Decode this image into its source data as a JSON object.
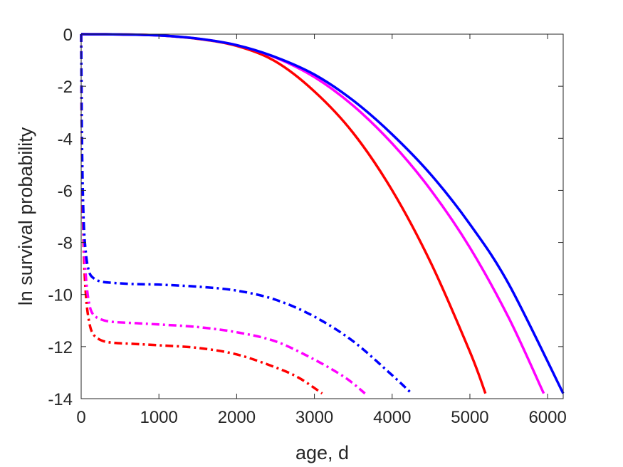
{
  "chart_data": {
    "type": "line",
    "title": "",
    "xlabel": "age, d",
    "ylabel": "ln survival probability",
    "xlim": [
      0,
      6200
    ],
    "ylim": [
      -14,
      0
    ],
    "xticks": [
      0,
      1000,
      2000,
      3000,
      4000,
      5000,
      6000
    ],
    "yticks": [
      0,
      -2,
      -4,
      -6,
      -8,
      -10,
      -12,
      -14
    ],
    "xtick_labels": [
      "0",
      "1000",
      "2000",
      "3000",
      "4000",
      "5000",
      "6000"
    ],
    "ytick_labels": [
      "0",
      "-2",
      "-4",
      "-6",
      "-8",
      "-10",
      "-12",
      "-14"
    ],
    "grid": false,
    "legend": "none",
    "series": [
      {
        "color": "#ff0000",
        "style": "solid",
        "x": [
          0,
          500,
          1000,
          1500,
          2000,
          2500,
          3000,
          3500,
          4000,
          4500,
          5000,
          5200
        ],
        "y": [
          0,
          -0.01,
          -0.05,
          -0.18,
          -0.45,
          -1.05,
          -2.2,
          -3.8,
          -6.0,
          -8.8,
          -12.2,
          -13.8
        ]
      },
      {
        "color": "#ff00ff",
        "style": "solid",
        "x": [
          0,
          500,
          1000,
          1500,
          2000,
          2500,
          3000,
          3500,
          4000,
          4500,
          5000,
          5500,
          5950
        ],
        "y": [
          0,
          -0.01,
          -0.05,
          -0.17,
          -0.42,
          -0.9,
          -1.65,
          -2.75,
          -4.2,
          -6.0,
          -8.2,
          -10.9,
          -13.8
        ]
      },
      {
        "color": "#0000ff",
        "style": "solid",
        "x": [
          0,
          500,
          1000,
          1500,
          2000,
          2500,
          3000,
          3500,
          4000,
          4500,
          5000,
          5500,
          6200
        ],
        "y": [
          0,
          -0.01,
          -0.05,
          -0.17,
          -0.42,
          -0.88,
          -1.55,
          -2.55,
          -3.85,
          -5.4,
          -7.3,
          -9.6,
          -13.8
        ]
      },
      {
        "color": "#ff0000",
        "style": "dashdot",
        "x": [
          0,
          10,
          30,
          60,
          100,
          150,
          250,
          400,
          700,
          1000,
          1500,
          2000,
          2500,
          2800,
          3100
        ],
        "y": [
          0,
          -4.5,
          -8.0,
          -10.0,
          -11.0,
          -11.5,
          -11.75,
          -11.85,
          -11.9,
          -11.95,
          -12.05,
          -12.3,
          -12.8,
          -13.2,
          -13.8
        ]
      },
      {
        "color": "#ff00ff",
        "style": "dashdot",
        "x": [
          0,
          10,
          30,
          60,
          100,
          150,
          250,
          400,
          700,
          1000,
          1500,
          2000,
          2500,
          3000,
          3400,
          3650
        ],
        "y": [
          0,
          -4.5,
          -7.5,
          -9.3,
          -10.3,
          -10.75,
          -10.95,
          -11.05,
          -11.1,
          -11.15,
          -11.25,
          -11.45,
          -11.8,
          -12.5,
          -13.2,
          -13.8
        ]
      },
      {
        "color": "#0000ff",
        "style": "dashdot",
        "x": [
          0,
          10,
          30,
          60,
          100,
          150,
          250,
          400,
          700,
          1000,
          1500,
          2000,
          2500,
          3000,
          3500,
          4000,
          4250
        ],
        "y": [
          0,
          -4.0,
          -7.0,
          -8.4,
          -9.1,
          -9.35,
          -9.5,
          -9.55,
          -9.6,
          -9.62,
          -9.7,
          -9.85,
          -10.2,
          -10.85,
          -11.8,
          -13.1,
          -13.8
        ]
      }
    ]
  }
}
